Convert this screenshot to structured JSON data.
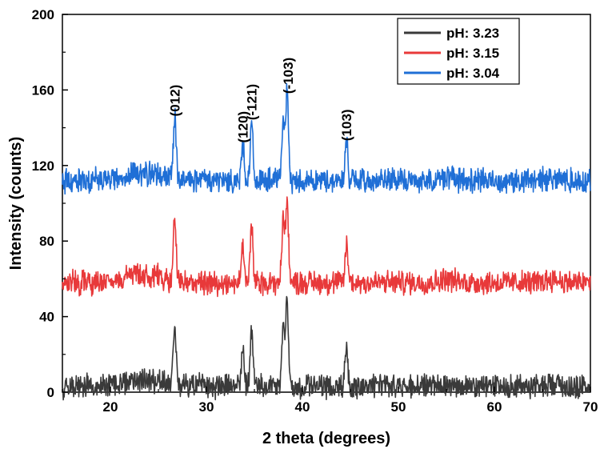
{
  "chart_data": {
    "type": "line",
    "title": "",
    "xlabel": "2 theta (degrees)",
    "ylabel": "Intensity (counts)",
    "xlim": [
      15,
      70
    ],
    "ylim": [
      0,
      200
    ],
    "x_ticks": [
      20,
      30,
      40,
      50,
      60,
      70
    ],
    "y_ticks": [
      0,
      40,
      80,
      120,
      160,
      200
    ],
    "grid": false,
    "legend_position": "top-right",
    "series": [
      {
        "name": "pH: 3.23",
        "color": "#3a3a3a",
        "baseline": 3,
        "noise": 5,
        "peaks": [
          [
            26.7,
            33
          ],
          [
            33.8,
            20
          ],
          [
            34.7,
            30
          ],
          [
            38.0,
            33
          ],
          [
            38.4,
            45
          ],
          [
            44.6,
            21
          ]
        ],
        "humps": [
          [
            23.5,
            4,
            3
          ],
          [
            55.0,
            2,
            1
          ],
          [
            66.0,
            2,
            1
          ]
        ]
      },
      {
        "name": "pH: 3.15",
        "color": "#e8393a",
        "baseline": 58,
        "noise": 5,
        "peaks": [
          [
            26.7,
            33
          ],
          [
            33.8,
            20
          ],
          [
            34.7,
            30
          ],
          [
            38.0,
            33
          ],
          [
            38.4,
            45
          ],
          [
            44.6,
            21
          ]
        ],
        "humps": [
          [
            23.5,
            4,
            3
          ],
          [
            55.0,
            2,
            1
          ],
          [
            66.0,
            2,
            1
          ]
        ]
      },
      {
        "name": "pH: 3.04",
        "color": "#1f6fd6",
        "baseline": 112,
        "noise": 5,
        "peaks": [
          [
            26.7,
            33
          ],
          [
            33.8,
            20
          ],
          [
            34.7,
            30
          ],
          [
            38.0,
            33
          ],
          [
            38.4,
            45
          ],
          [
            44.6,
            21
          ]
        ],
        "humps": [
          [
            23.5,
            4,
            3
          ],
          [
            55.0,
            2,
            1
          ],
          [
            66.0,
            2,
            1
          ]
        ]
      }
    ],
    "annotations": [
      {
        "text": "(012)",
        "x": 26.7,
        "y": 146
      },
      {
        "text": "(120)",
        "x": 33.8,
        "y": 132
      },
      {
        "text": "(-121)",
        "x": 34.7,
        "y": 144
      },
      {
        "text": "(-103)",
        "x": 38.5,
        "y": 158
      },
      {
        "text": "(103)",
        "x": 44.6,
        "y": 133
      }
    ]
  }
}
